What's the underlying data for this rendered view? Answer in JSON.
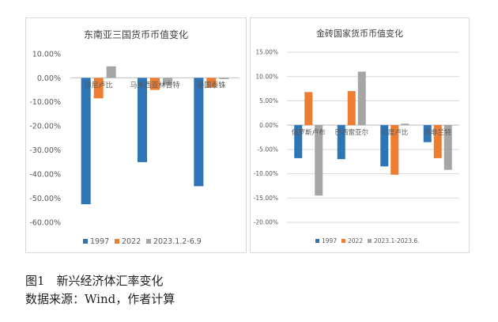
{
  "chart_data": [
    {
      "type": "bar",
      "title": "东南亚三国货币币值变化",
      "categories": [
        "印尼卢比",
        "马来西亚林吉特",
        "泰国泰铢"
      ],
      "series": [
        {
          "name": "1997",
          "values": [
            -0.525,
            -0.35,
            -0.45
          ]
        },
        {
          "name": "2022",
          "values": [
            -0.085,
            -0.05,
            -0.04
          ]
        },
        {
          "name": "2023.1.2-6.9",
          "values": [
            0.048,
            -0.03,
            -0.005
          ]
        }
      ],
      "ylim": [
        -0.6,
        0.1
      ],
      "yticks": [
        "10.00%",
        "0.00%",
        "-10.00%",
        "-20.00%",
        "-30.00%",
        "-40.00%",
        "-50.00%",
        "-60.00%"
      ],
      "grid": false,
      "legend": "bottom"
    },
    {
      "type": "bar",
      "title": "金砖国家货币币值变化",
      "categories": [
        "俄罗斯卢布",
        "巴西雷亚尔",
        "印度卢比",
        "南非兰特"
      ],
      "series": [
        {
          "name": "1997",
          "values": [
            -0.068,
            -0.07,
            -0.085,
            -0.035
          ]
        },
        {
          "name": "2022",
          "values": [
            0.068,
            0.07,
            -0.102,
            -0.068
          ]
        },
        {
          "name": "2023.1-2023.6.",
          "values": [
            -0.145,
            0.11,
            0.003,
            -0.092
          ]
        }
      ],
      "ylim": [
        -0.2,
        0.15
      ],
      "yticks": [
        "15.00%",
        "10.00%",
        "5.00%",
        "0.00%",
        "-5.00%",
        "-10.00%",
        "-15.00%",
        "-20.00%"
      ],
      "grid": true,
      "legend": "bottom"
    }
  ],
  "colors": {
    "s1": "#2e75b6",
    "s2": "#ed7d31",
    "s3": "#a5a5a5",
    "grid": "#d9d9d9"
  },
  "caption": {
    "figure": "图1　新兴经济体汇率变化",
    "source": "数据来源：Wind，作者计算"
  }
}
